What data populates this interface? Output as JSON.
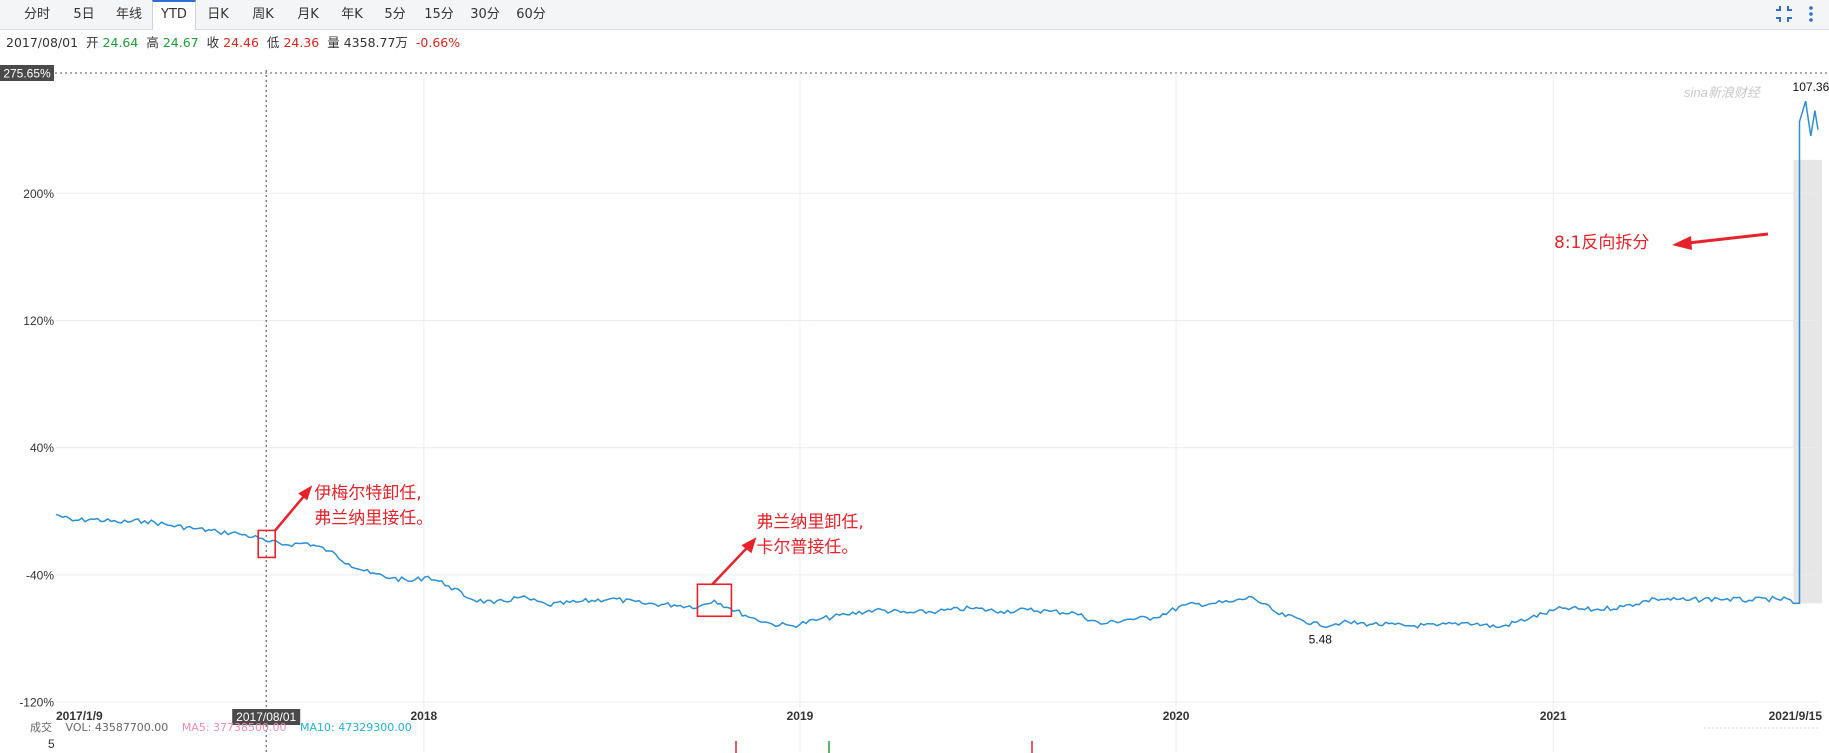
{
  "tabs": [
    {
      "label": "分时",
      "active": false
    },
    {
      "label": "5日",
      "active": false
    },
    {
      "label": "年线",
      "active": false
    },
    {
      "label": "YTD",
      "active": true
    },
    {
      "label": "日K",
      "active": false
    },
    {
      "label": "周K",
      "active": false
    },
    {
      "label": "月K",
      "active": false
    },
    {
      "label": "年K",
      "active": false
    },
    {
      "label": "5分",
      "active": false
    },
    {
      "label": "15分",
      "active": false
    },
    {
      "label": "30分",
      "active": false
    },
    {
      "label": "60分",
      "active": false
    }
  ],
  "info": {
    "date": "2017/08/01",
    "open_label": "开",
    "open": "24.64",
    "high_label": "高",
    "high": "24.67",
    "close_label": "收",
    "close": "24.46",
    "low_label": "低",
    "low": "24.36",
    "vol_label": "量",
    "vol": "4358.77万",
    "change": "-0.66%"
  },
  "volume_bar": {
    "label": "成交",
    "vol": "VOL: 43587700.00",
    "ma5": "MA5: 37738500.00",
    "ma10": "MA10: 47329300.00",
    "axis_tick": "5"
  },
  "colors": {
    "line": "#2b8fd6",
    "annotation": "#e8222a",
    "grid": "#e9ecef",
    "ma5": "#f28ab0",
    "ma10": "#1fb2d6"
  },
  "chart_data": {
    "type": "line",
    "y_unit": "percent change",
    "y_ticks": [
      "275.65%",
      "200%",
      "120%",
      "40%",
      "-40%",
      "-120%"
    ],
    "y_tick_values": [
      275.65,
      200,
      120,
      40,
      -40,
      -120
    ],
    "ylim": [
      -120,
      275.65
    ],
    "x_labels": [
      "2017/1/9",
      "2018",
      "2019",
      "2020",
      "2021",
      "2021/9/15"
    ],
    "x_label_dates": [
      "2017-01-09",
      "2018-01-01",
      "2019-01-01",
      "2020-01-01",
      "2021-01-01",
      "2021-09-15"
    ],
    "crosshair_date": "2017/08/01",
    "series": [
      {
        "x": [
          "2017-01-09",
          "2017-01-25",
          "2017-02-15",
          "2017-03-10",
          "2017-04-05",
          "2017-05-01",
          "2017-05-25",
          "2017-06-15",
          "2017-07-05",
          "2017-07-25",
          "2017-08-01",
          "2017-08-20",
          "2017-09-10",
          "2017-10-01",
          "2017-10-20",
          "2017-11-10",
          "2017-12-01",
          "2017-12-20",
          "2018-01-05",
          "2018-01-25",
          "2018-02-15",
          "2018-03-10",
          "2018-04-05",
          "2018-05-01",
          "2018-06-01",
          "2018-07-01",
          "2018-08-01",
          "2018-09-01",
          "2018-09-25",
          "2018-10-10",
          "2018-10-25",
          "2018-11-15",
          "2018-12-05",
          "2018-12-25",
          "2019-01-20",
          "2019-02-15",
          "2019-03-15",
          "2019-04-15",
          "2019-05-15",
          "2019-06-15",
          "2019-07-15",
          "2019-08-10",
          "2019-09-01",
          "2019-09-25",
          "2019-10-20",
          "2019-11-15",
          "2019-12-10",
          "2020-01-10",
          "2020-02-05",
          "2020-02-25",
          "2020-03-15",
          "2020-04-10",
          "2020-05-01",
          "2020-05-20",
          "2020-06-10",
          "2020-07-10",
          "2020-08-10",
          "2020-09-10",
          "2020-10-10",
          "2020-11-10",
          "2020-12-10",
          "2021-01-10",
          "2021-02-10",
          "2021-03-10",
          "2021-04-10",
          "2021-05-10",
          "2021-06-10",
          "2021-07-10",
          "2021-08-05",
          "2021-08-10",
          "2021-08-16",
          "2021-08-22",
          "2021-08-28",
          "2021-09-03",
          "2021-09-08",
          "2021-09-12",
          "2021-09-15"
        ],
        "values": [
          -2,
          -6,
          -5,
          -7,
          -6,
          -9,
          -11,
          -13,
          -14,
          -17,
          -19,
          -21,
          -20,
          -25,
          -33,
          -39,
          -42,
          -44,
          -41,
          -47,
          -55,
          -58,
          -54,
          -59,
          -57,
          -55,
          -58,
          -59,
          -60,
          -56,
          -61,
          -67,
          -71,
          -72,
          -68,
          -65,
          -62,
          -64,
          -63,
          -61,
          -63,
          -62,
          -63,
          -64,
          -71,
          -68,
          -67,
          -59,
          -58,
          -57,
          -54,
          -65,
          -68,
          -72,
          -70,
          -71,
          -72,
          -72,
          -70,
          -73,
          -67,
          -61,
          -62,
          -60,
          -55,
          -56,
          -55,
          -56,
          -55,
          -56,
          -55,
          -58,
          245,
          258,
          236,
          252,
          240
        ],
        "line_width": 1.5
      }
    ],
    "annotations": [
      {
        "lines": [
          "伊梅尔特卸任,",
          "弗兰纳里接任。"
        ]
      },
      {
        "lines": [
          "弗兰纳里卸任,",
          "卡尔普接任。"
        ]
      },
      {
        "lines": [
          "8:1反向拆分"
        ]
      }
    ],
    "point_labels": [
      {
        "text": "107.36",
        "date": "2021-08-10"
      },
      {
        "text": "5.48",
        "date": "2020-05-20"
      }
    ],
    "watermark": "sina新浪财经"
  }
}
